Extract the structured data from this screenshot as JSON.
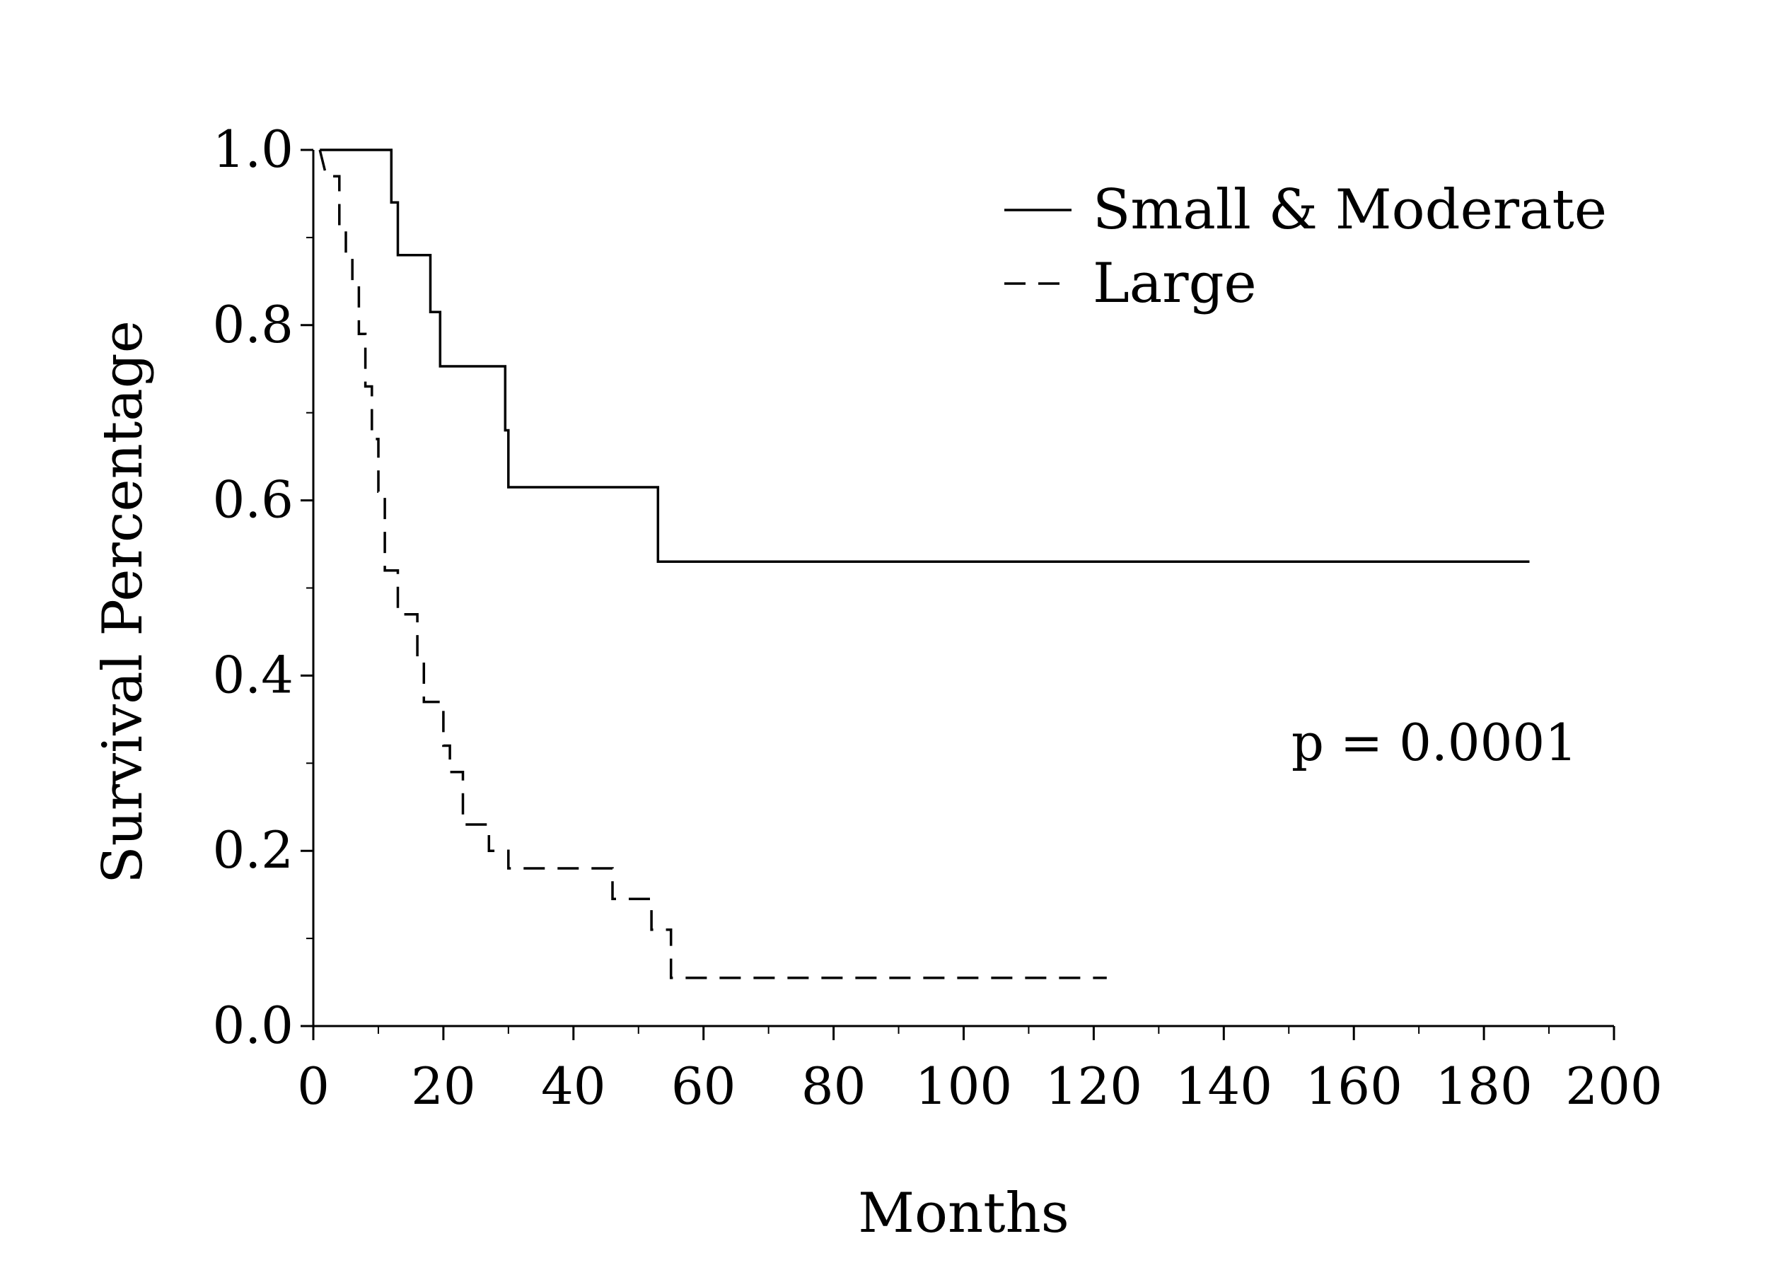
{
  "chart_data": {
    "type": "line",
    "title": "",
    "xlabel": "Months",
    "ylabel": "Survival Percentage",
    "xlim": [
      0,
      200
    ],
    "ylim": [
      0.0,
      1.0
    ],
    "x_ticks": [
      0,
      20,
      40,
      60,
      80,
      100,
      120,
      140,
      160,
      180,
      200
    ],
    "x_tick_labels": [
      "0",
      "20",
      "40",
      "60",
      "80",
      "100",
      "120",
      "140",
      "160",
      "180",
      "200"
    ],
    "y_ticks": [
      0.0,
      0.2,
      0.4,
      0.6,
      0.8,
      1.0
    ],
    "y_tick_labels": [
      "0.0",
      "0.2",
      "0.4",
      "0.6",
      "0.8",
      "1.0"
    ],
    "grid": false,
    "legend_position": "top-right",
    "annotation": "p = 0.0001",
    "step": true,
    "series": [
      {
        "name": "Small & Moderate",
        "style": "solid",
        "color": "#000000",
        "points": [
          [
            1,
            1.0
          ],
          [
            12,
            1.0
          ],
          [
            12,
            0.94
          ],
          [
            13,
            0.94
          ],
          [
            13,
            0.88
          ],
          [
            18,
            0.88
          ],
          [
            18,
            0.815
          ],
          [
            19.5,
            0.815
          ],
          [
            19.5,
            0.753
          ],
          [
            29.5,
            0.753
          ],
          [
            29.5,
            0.68
          ],
          [
            30,
            0.68
          ],
          [
            30,
            0.615
          ],
          [
            53,
            0.615
          ],
          [
            53,
            0.53
          ],
          [
            187,
            0.53
          ]
        ]
      },
      {
        "name": "Large",
        "style": "dashed",
        "color": "#000000",
        "points": [
          [
            1,
            1.0
          ],
          [
            2,
            0.97
          ],
          [
            4,
            0.97
          ],
          [
            4,
            0.91
          ],
          [
            5,
            0.91
          ],
          [
            5,
            0.88
          ],
          [
            6,
            0.88
          ],
          [
            6,
            0.85
          ],
          [
            7,
            0.85
          ],
          [
            7,
            0.79
          ],
          [
            8,
            0.79
          ],
          [
            8,
            0.73
          ],
          [
            9,
            0.73
          ],
          [
            9,
            0.67
          ],
          [
            10,
            0.67
          ],
          [
            10,
            0.61
          ],
          [
            11,
            0.61
          ],
          [
            11,
            0.52
          ],
          [
            13,
            0.52
          ],
          [
            13,
            0.47
          ],
          [
            16,
            0.47
          ],
          [
            16,
            0.42
          ],
          [
            17,
            0.42
          ],
          [
            17,
            0.37
          ],
          [
            20,
            0.37
          ],
          [
            20,
            0.32
          ],
          [
            21,
            0.32
          ],
          [
            21,
            0.29
          ],
          [
            23,
            0.29
          ],
          [
            23,
            0.23
          ],
          [
            27,
            0.23
          ],
          [
            27,
            0.2
          ],
          [
            30,
            0.2
          ],
          [
            30,
            0.18
          ],
          [
            46,
            0.18
          ],
          [
            46,
            0.145
          ],
          [
            52,
            0.145
          ],
          [
            52,
            0.11
          ],
          [
            55,
            0.11
          ],
          [
            55,
            0.055
          ],
          [
            122,
            0.055
          ]
        ]
      }
    ]
  }
}
